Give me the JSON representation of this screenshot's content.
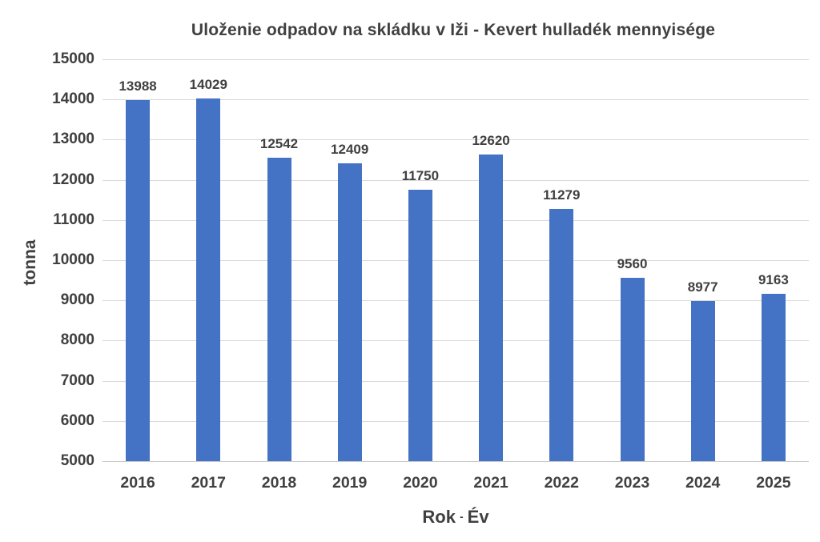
{
  "chart_data": {
    "type": "bar",
    "title": "Uloženie odpadov na skládku v Iži - Kevert hulladék mennyisége",
    "categories": [
      "2016",
      "2017",
      "2018",
      "2019",
      "2020",
      "2021",
      "2022",
      "2023",
      "2024",
      "2025"
    ],
    "values": [
      13988,
      14029,
      12542,
      12409,
      11750,
      12620,
      11279,
      9560,
      8977,
      9163
    ],
    "ylabel": "tonna",
    "xlabel_primary": "Rok",
    "xlabel_separator": "-",
    "xlabel_secondary": "Év",
    "ylim": [
      5000,
      15000
    ],
    "yticks": [
      5000,
      6000,
      7000,
      8000,
      9000,
      10000,
      11000,
      12000,
      13000,
      14000,
      15000
    ],
    "grid": true,
    "legend": false,
    "data_labels": true,
    "bar_color": "#4472C4",
    "text_color": "#404040",
    "grid_color": "#D9D9D9",
    "axis_line_color": "#C8C8C8"
  }
}
